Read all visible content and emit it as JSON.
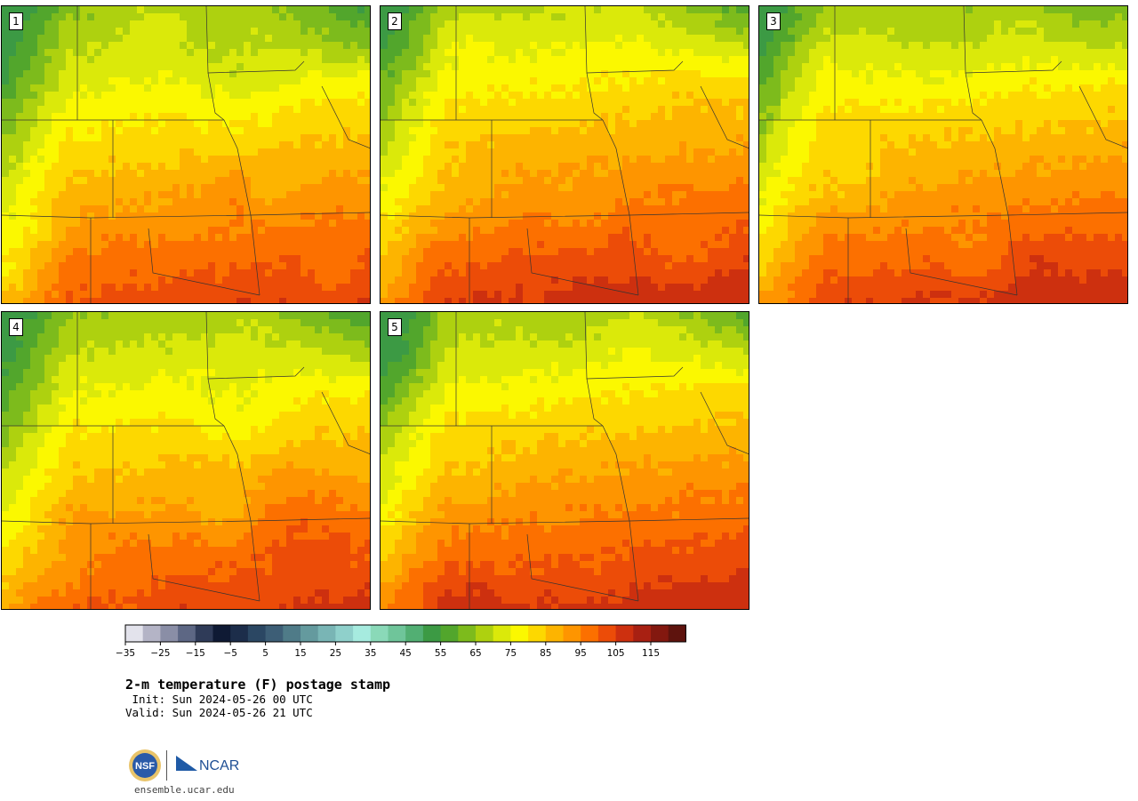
{
  "panels": [
    {
      "label": "1"
    },
    {
      "label": "2"
    },
    {
      "label": "3"
    },
    {
      "label": "4"
    },
    {
      "label": "5"
    }
  ],
  "colorbar": {
    "colors": [
      "#e3e3ec",
      "#b4b4c6",
      "#8a8ea6",
      "#5d6784",
      "#2f3b58",
      "#0f1a34",
      "#1c2d4a",
      "#2b4763",
      "#3d5e76",
      "#4f7b88",
      "#649a9e",
      "#79b5b5",
      "#8fd0cb",
      "#a6ebdf",
      "#8ad9b8",
      "#6fc59a",
      "#52af73",
      "#3c9a44",
      "#52a62c",
      "#7dbb1c",
      "#aed10f",
      "#dbe90a",
      "#fbf800",
      "#fdd800",
      "#fdb400",
      "#fe9500",
      "#fc7000",
      "#ec4c08",
      "#cd300f",
      "#a82012",
      "#83180f",
      "#5e130d"
    ],
    "tick_labels": [
      "−35",
      "−25",
      "−15",
      "−5",
      "5",
      "15",
      "25",
      "35",
      "45",
      "55",
      "65",
      "75",
      "85",
      "95",
      "105",
      "115"
    ]
  },
  "title": "2-m temperature (F) postage stamp",
  "init": " Init: Sun 2024-05-26 00 UTC",
  "valid": "Valid: Sun 2024-05-26 21 UTC",
  "logos": {
    "nsf": "NSF",
    "ncar": "NCAR"
  },
  "url": "ensemble.ucar.edu"
}
